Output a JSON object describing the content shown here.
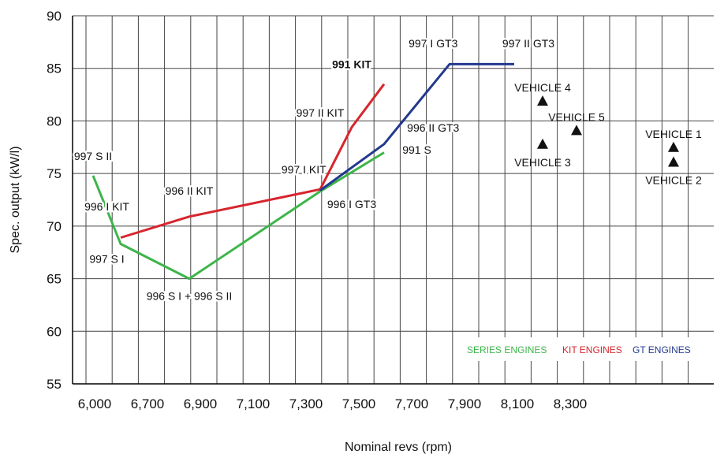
{
  "chart_data": {
    "type": "line",
    "xlabel": "Nominal revs (rpm)",
    "ylabel": "Spec. output (kW/l)",
    "x_ticks": [
      "6,000",
      "6,700",
      "6,900",
      "7,100",
      "7,300",
      "7,500",
      "7,700",
      "7,900",
      "8,100",
      "8,300"
    ],
    "y_ticks": [
      "55",
      "60",
      "65",
      "70",
      "75",
      "80",
      "85",
      "90"
    ],
    "ylim": [
      55,
      90
    ],
    "grid": true,
    "series": [
      {
        "name": "SERIES ENGINES",
        "color": "#3db54a",
        "points": [
          {
            "x": "6,000",
            "y": 74.8
          },
          {
            "x": "6,100",
            "y": 68.3
          },
          {
            "x": "6,800",
            "y": 65.0
          },
          {
            "x": "7,200",
            "y": 73.3
          },
          {
            "x": "7,400",
            "y": 77.0
          }
        ]
      },
      {
        "name": "KIT ENGINES",
        "color": "#d7252d",
        "points": [
          {
            "x": "6,100",
            "y": 68.9
          },
          {
            "x": "6,800",
            "y": 70.9
          },
          {
            "x": "7,200",
            "y": 73.5
          },
          {
            "x": "7,300",
            "y": 79.4
          },
          {
            "x": "7,400",
            "y": 83.5
          }
        ]
      },
      {
        "name": "GT ENGINES",
        "color": "#23398f",
        "points": [
          {
            "x": "7,200",
            "y": 73.4
          },
          {
            "x": "7,400",
            "y": 77.8
          },
          {
            "x": "7,600",
            "y": 85.4
          },
          {
            "x": "7,800",
            "y": 85.4
          }
        ]
      }
    ],
    "vehicles": [
      {
        "label": "VEHICLE 1",
        "x": "8,300",
        "y": 77.5
      },
      {
        "label": "VEHICLE 2",
        "x": "8,300",
        "y": 76.1
      },
      {
        "label": "VEHICLE 3",
        "x": "7,900",
        "y": 77.8
      },
      {
        "label": "VEHICLE 4",
        "x": "7,900",
        "y": 81.9
      },
      {
        "label": "VEHICLE 5",
        "x": "8,000",
        "y": 79.1
      }
    ],
    "annotations": [
      {
        "text": "997 S II",
        "x": "6,000",
        "y": 76.3
      },
      {
        "text": "996 I KIT",
        "x": "6,050",
        "y": 71.5
      },
      {
        "text": "996 II KIT",
        "x": "6,800",
        "y": 73.0
      },
      {
        "text": "997 S I",
        "x": "6,050",
        "y": 66.5
      },
      {
        "text": "996 S I + 996 S II",
        "x": "6,800",
        "y": 63.0
      },
      {
        "text": "997 I KIT",
        "x": "7,150",
        "y": 75.0
      },
      {
        "text": "997 II KIT",
        "x": "7,200",
        "y": 80.4
      },
      {
        "text": "991 KIT",
        "x": "7,300",
        "y": 85.0,
        "bold": true
      },
      {
        "text": "997 I GT3",
        "x": "7,550",
        "y": 87.0
      },
      {
        "text": "997 II GT3",
        "x": "7,850",
        "y": 87.0
      },
      {
        "text": "996 II GT3",
        "x": "7,550",
        "y": 79.0
      },
      {
        "text": "991 S",
        "x": "7,500",
        "y": 76.9
      },
      {
        "text": "996 I GT3",
        "x": "7,300",
        "y": 71.7
      }
    ],
    "legend": [
      {
        "label": "SERIES ENGINES",
        "color": "#3db54a"
      },
      {
        "label": "KIT ENGINES",
        "color": "#d7252d"
      },
      {
        "label": "GT ENGINES",
        "color": "#23398f"
      }
    ],
    "legend_position": "bottom-right"
  }
}
